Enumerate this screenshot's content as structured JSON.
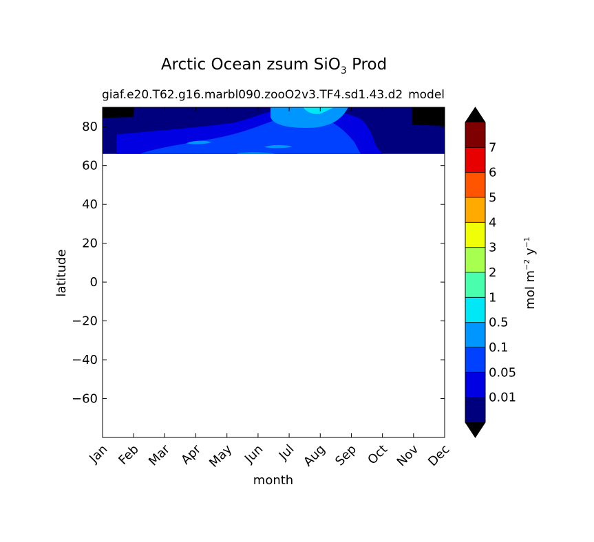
{
  "chart_data": {
    "type": "heatmap",
    "title_main": "Arctic Ocean zsum SiO",
    "title_sub": "3",
    "title_suffix": " Prod",
    "subtitle_left": "giaf.e20.T62.g16.marbl090.zooO2v3.TF4.sd1.43.d2",
    "subtitle_right": "model",
    "xlabel": "month",
    "ylabel": "latitude",
    "x_categories": [
      "Jan",
      "Feb",
      "Mar",
      "Apr",
      "May",
      "Jun",
      "Jul",
      "Aug",
      "Sep",
      "Oct",
      "Nov",
      "Dec"
    ],
    "ylim": [
      -80,
      90
    ],
    "yticks": [
      "80",
      "60",
      "40",
      "20",
      "0",
      "−20",
      "−40",
      "−60"
    ],
    "ytick_values": [
      80,
      60,
      40,
      20,
      0,
      -20,
      -40,
      -60
    ],
    "data_lat_range": [
      66,
      90
    ],
    "colorbar": {
      "label_base": "mol m",
      "label_exp1": "−2",
      "label_mid": " y",
      "label_exp2": "−1",
      "levels": [
        "0.01",
        "0.05",
        "0.1",
        "0.5",
        "1",
        "2",
        "3",
        "4",
        "5",
        "6",
        "7"
      ],
      "colors": [
        "#00007f",
        "#0000e3",
        "#0040ff",
        "#0096ff",
        "#00e8f5",
        "#49ffad",
        "#a7ff4f",
        "#f0ff07",
        "#ffaa00",
        "#ff5500",
        "#e80000",
        "#7f0000"
      ],
      "under_color": "#000000",
      "over_color": "#000000"
    },
    "regions": [
      {
        "level": 0,
        "note": "background"
      },
      {
        "level": 1,
        "months": [
          1,
          8.9
        ],
        "lat": [
          66,
          88
        ]
      },
      {
        "level": 2,
        "months": [
          3.2,
          8.2
        ],
        "lat": [
          66,
          85
        ]
      },
      {
        "level": 3,
        "months": [
          5.4,
          7.9
        ],
        "lat": [
          77,
          90
        ]
      },
      {
        "level": 4,
        "months": [
          6.5,
          7.5
        ],
        "lat": [
          86,
          90
        ]
      }
    ]
  }
}
